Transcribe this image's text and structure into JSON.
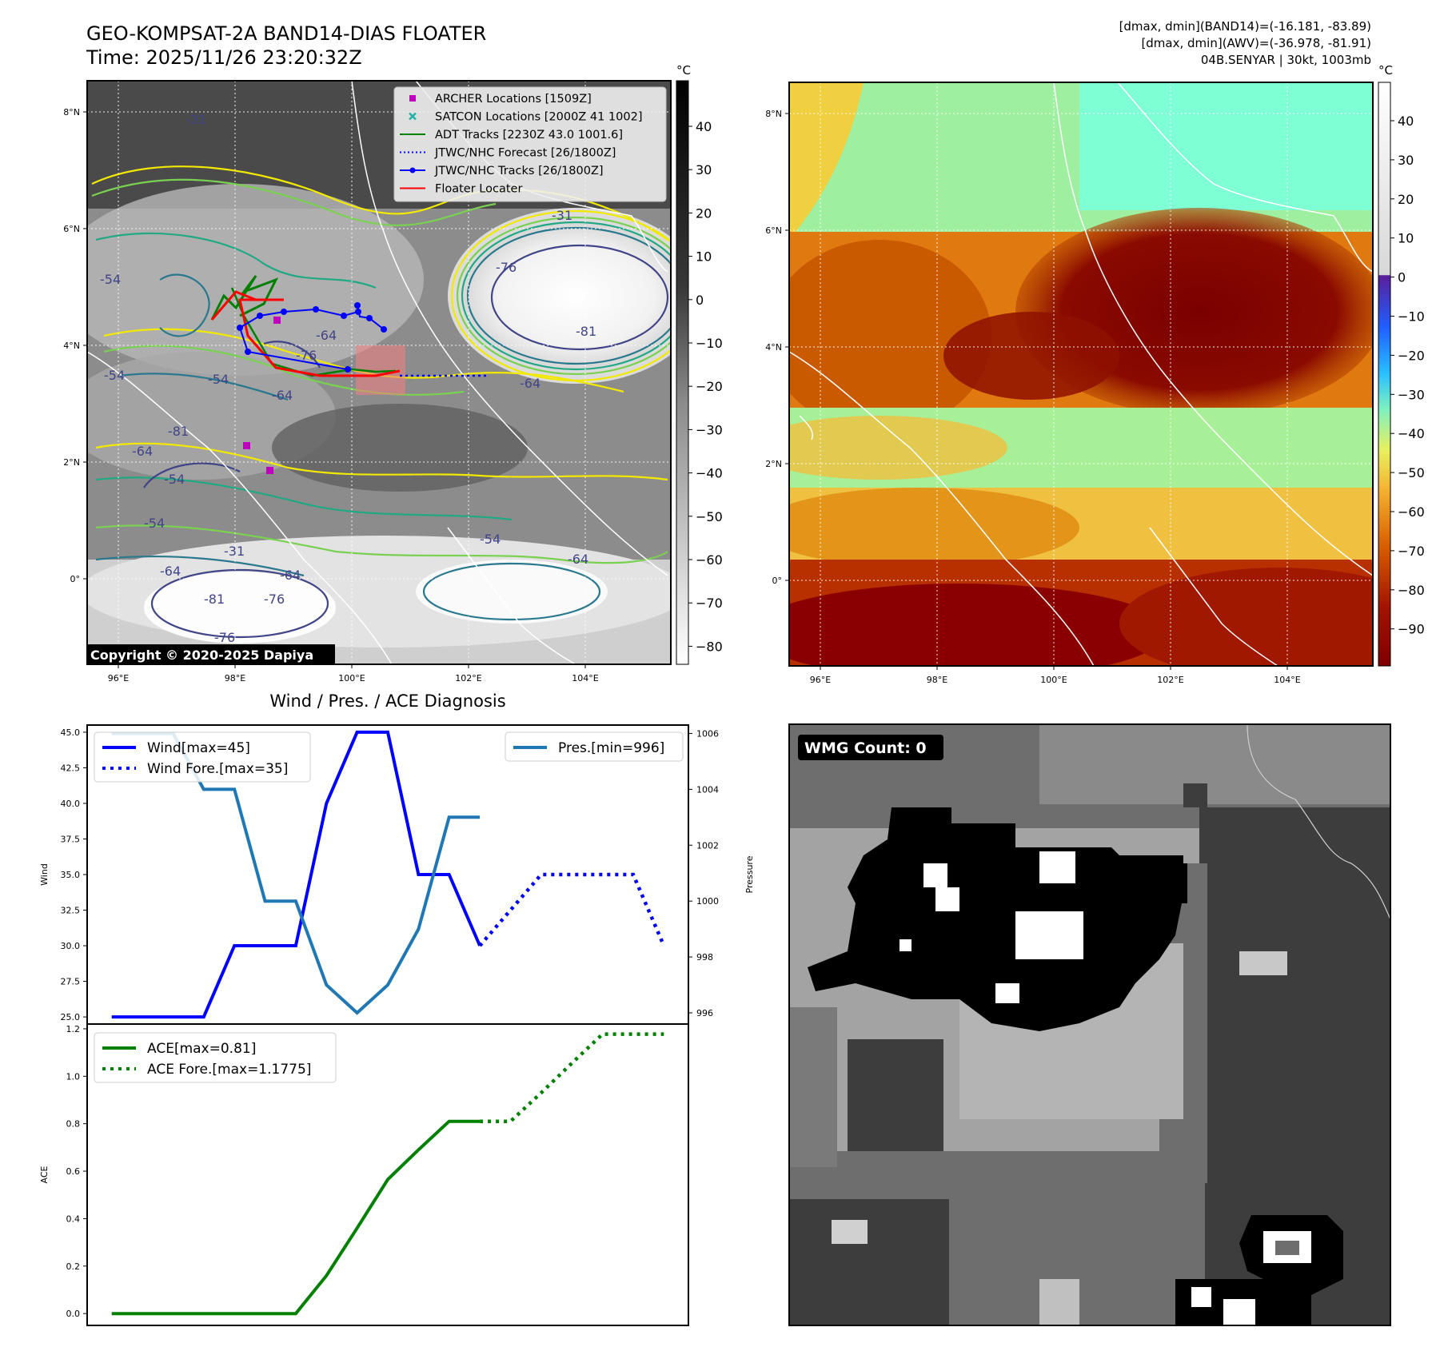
{
  "header": {
    "title_line1": "GEO-KOMPSAT-2A BAND14-DIAS FLOATER",
    "title_line2": "Time: 2025/11/26 23:20:32Z",
    "stats_line1": "[dmax, dmin](BAND14)=(-16.181, -83.89)",
    "stats_line2": "[dmax, dmin](AWV)=(-36.978, -81.91)",
    "stats_line3": "04B.SENYAR | 30kt, 1003mb"
  },
  "map": {
    "lon_ticks": [
      "96°E",
      "98°E",
      "100°E",
      "102°E",
      "104°E"
    ],
    "lat_ticks": [
      "8°N",
      "6°N",
      "4°N",
      "2°N",
      "0°"
    ],
    "copyright": "Copyright © 2020-2025 Dapiya",
    "contour_labels": [
      "-31",
      "-31",
      "-76",
      "-81",
      "-76",
      "-64",
      "-64",
      "-54",
      "-54",
      "-64",
      "-54",
      "-31",
      "-64",
      "-64",
      "-81",
      "-76",
      "-76",
      "-64",
      "-54",
      "-81",
      "-54",
      "-64",
      "-54"
    ],
    "legend": [
      {
        "label": "ARCHER Locations [1509Z]",
        "color": "#bf00bf",
        "marker": "square"
      },
      {
        "label": "SATCON Locations [2000Z 41 1002]",
        "color": "#20b2aa",
        "marker": "x"
      },
      {
        "label": "ADT Tracks [2230Z 43.0 1001.6]",
        "color": "#008000",
        "marker": "line"
      },
      {
        "label": "JTWC/NHC Forecast [26/1800Z]",
        "color": "#0000ff",
        "marker": "dotted"
      },
      {
        "label": "JTWC/NHC Tracks [26/1800Z]",
        "color": "#0000ff",
        "marker": "line-dot"
      },
      {
        "label": "Floater Locater",
        "color": "#ff0000",
        "marker": "line"
      }
    ],
    "colorbar_gray": {
      "unit": "°C",
      "ticks": [
        "40",
        "30",
        "20",
        "10",
        "0",
        "−10",
        "−20",
        "−30",
        "−40",
        "−50",
        "−60",
        "−70",
        "−80"
      ]
    },
    "colorbar_color": {
      "unit": "°C",
      "ticks": [
        "40",
        "30",
        "20",
        "10",
        "0",
        "−10",
        "−20",
        "−30",
        "−40",
        "−50",
        "−60",
        "−70",
        "−80",
        "−90"
      ]
    }
  },
  "wmg": {
    "label": "WMG Count: 0"
  },
  "chart_data": [
    {
      "type": "line",
      "title": "Wind / Pres. / ACE Diagnosis",
      "ylabel": "Wind",
      "y2label": "Pressure",
      "ylim": [
        24.5,
        45.5
      ],
      "yticks": [
        "45.0",
        "42.5",
        "40.0",
        "37.5",
        "35.0",
        "32.5",
        "30.0",
        "27.5",
        "25.0"
      ],
      "y2lim": [
        995.6,
        1006.3
      ],
      "y2ticks": [
        "1006",
        "1004",
        "1002",
        "1000",
        "998",
        "996"
      ],
      "series": [
        {
          "name": "Wind[max=45]",
          "axis": "left",
          "color": "#0000ff",
          "style": "solid",
          "x": [
            0,
            1,
            2,
            3,
            4,
            5,
            6,
            7,
            8,
            9,
            10,
            11,
            12
          ],
          "values": [
            25,
            25,
            25,
            25,
            30,
            30,
            30,
            40,
            45,
            45,
            35,
            35,
            30
          ]
        },
        {
          "name": "Wind Fore.[max=35]",
          "axis": "left",
          "color": "#0000ff",
          "style": "dotted",
          "x": [
            12,
            13,
            14,
            15,
            16,
            17,
            18
          ],
          "values": [
            30,
            32.5,
            35,
            35,
            35,
            35,
            30
          ]
        },
        {
          "name": "Pres.[min=996]",
          "axis": "right",
          "color": "#1f77b4",
          "style": "solid",
          "x": [
            0,
            1,
            2,
            3,
            4,
            5,
            6,
            7,
            8,
            9,
            10,
            11,
            12
          ],
          "values": [
            1006,
            1006,
            1006,
            1004,
            1004,
            1000,
            1000,
            997,
            996,
            997,
            999,
            1003,
            1003
          ]
        }
      ]
    },
    {
      "type": "line",
      "ylabel": "ACE",
      "ylim": [
        -0.05,
        1.22
      ],
      "yticks": [
        "1.2",
        "1.0",
        "0.8",
        "0.6",
        "0.4",
        "0.2",
        "0.0"
      ],
      "series": [
        {
          "name": "ACE[max=0.81]",
          "color": "#008000",
          "style": "solid",
          "x": [
            0,
            1,
            2,
            3,
            4,
            5,
            6,
            7,
            8,
            9,
            10,
            11,
            12
          ],
          "values": [
            0,
            0,
            0,
            0,
            0,
            0,
            0,
            0.16,
            0.36,
            0.565,
            0.69,
            0.81,
            0.81
          ]
        },
        {
          "name": "ACE Fore.[max=1.1775]",
          "color": "#008000",
          "style": "dotted",
          "x": [
            12,
            13,
            14,
            15,
            16,
            17,
            18
          ],
          "values": [
            0.81,
            0.81,
            0.93,
            1.055,
            1.1775,
            1.1775,
            1.1775
          ]
        }
      ]
    }
  ]
}
